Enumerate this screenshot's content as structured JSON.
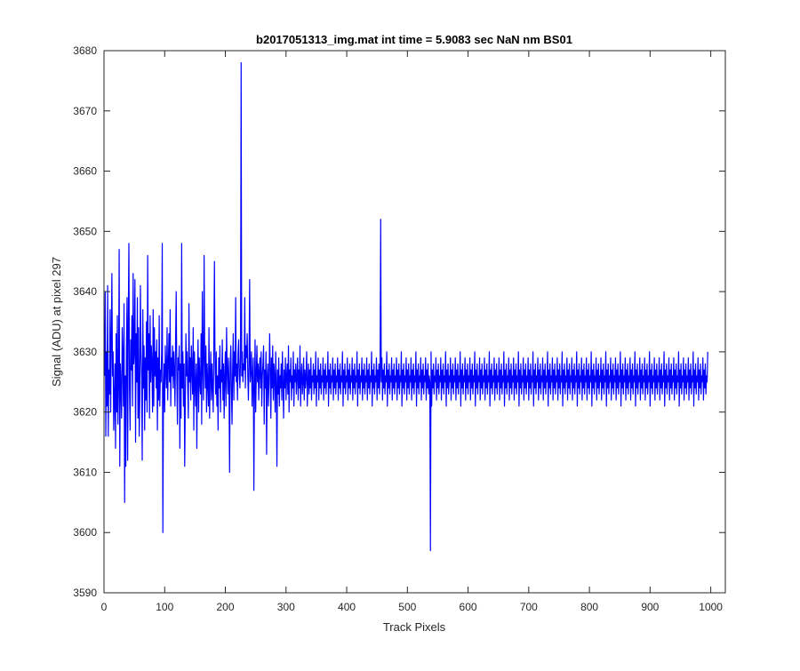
{
  "figure": {
    "background": "#ffffff",
    "axes_color": "#262626",
    "line_color": "#0000ff"
  },
  "chart_data": {
    "type": "line",
    "title": "b2017051313_img.mat int time = 5.9083 sec  NaN nm BS01",
    "xlabel": "Track Pixels",
    "ylabel": "Signal (ADU) at pixel 297",
    "xlim": [
      0,
      1024
    ],
    "ylim": [
      3590,
      3680
    ],
    "xticks": [
      0,
      100,
      200,
      300,
      400,
      500,
      600,
      700,
      800,
      900,
      1000
    ],
    "yticks": [
      3590,
      3600,
      3610,
      3620,
      3630,
      3640,
      3650,
      3660,
      3670,
      3680
    ],
    "grid": false,
    "legend": "none",
    "box": true,
    "series": [
      {
        "color": "#0000ff",
        "x_start": 1,
        "x_step": 1,
        "y": [
          3626,
          3640,
          3616,
          3630,
          3621,
          3641,
          3616,
          3627,
          3623,
          3637,
          3620,
          3632,
          3643,
          3626,
          3630,
          3617,
          3622,
          3628,
          3614,
          3633,
          3620,
          3636,
          3618,
          3625,
          3647,
          3611,
          3628,
          3624,
          3619,
          3634,
          3629,
          3621,
          3638,
          3605,
          3626,
          3611,
          3630,
          3639,
          3612,
          3635,
          3648,
          3624,
          3617,
          3632,
          3627,
          3636,
          3621,
          3643,
          3628,
          3630,
          3642,
          3615,
          3633,
          3625,
          3639,
          3619,
          3634,
          3616,
          3622,
          3641,
          3630,
          3626,
          3612,
          3637,
          3624,
          3631,
          3617,
          3629,
          3622,
          3635,
          3620,
          3646,
          3627,
          3633,
          3619,
          3636,
          3625,
          3631,
          3628,
          3620,
          3637,
          3621,
          3634,
          3626,
          3630,
          3624,
          3632,
          3617,
          3629,
          3622,
          3636,
          3621,
          3627,
          3625,
          3630,
          3648,
          3600,
          3623,
          3628,
          3620,
          3631,
          3627,
          3624,
          3634,
          3622,
          3628,
          3633,
          3625,
          3637,
          3621,
          3629,
          3626,
          3631,
          3624,
          3630,
          3627,
          3621,
          3632,
          3640,
          3626,
          3618,
          3629,
          3627,
          3631,
          3614,
          3628,
          3619,
          3648,
          3624,
          3630,
          3621,
          3628,
          3611,
          3622,
          3633,
          3626,
          3630,
          3624,
          3619,
          3638,
          3625,
          3629,
          3622,
          3631,
          3627,
          3623,
          3634,
          3617,
          3630,
          3625,
          3621,
          3628,
          3614,
          3626,
          3632,
          3620,
          3629,
          3625,
          3623,
          3633,
          3618,
          3640,
          3627,
          3622,
          3646,
          3629,
          3624,
          3631,
          3620,
          3628,
          3625,
          3621,
          3634,
          3619,
          3626,
          3630,
          3622,
          3628,
          3624,
          3620,
          3631,
          3645,
          3628,
          3623,
          3630,
          3621,
          3626,
          3617,
          3629,
          3624,
          3631,
          3620,
          3627,
          3625,
          3632,
          3622,
          3628,
          3619,
          3626,
          3630,
          3621,
          3634,
          3627,
          3623,
          3629,
          3625,
          3610,
          3628,
          3631,
          3624,
          3618,
          3627,
          3633,
          3622,
          3630,
          3626,
          3639,
          3625,
          3628,
          3622,
          3630,
          3632,
          3626,
          3624,
          3629,
          3678,
          3626,
          3630,
          3625,
          3628,
          3627,
          3639,
          3624,
          3631,
          3629,
          3633,
          3626,
          3622,
          3628,
          3642,
          3625,
          3627,
          3630,
          3621,
          3626,
          3629,
          3607,
          3624,
          3632,
          3620,
          3626,
          3631,
          3625,
          3628,
          3622,
          3627,
          3629,
          3624,
          3630,
          3621,
          3626,
          3628,
          3631,
          3618,
          3627,
          3624,
          3630,
          3613,
          3626,
          3628,
          3621,
          3625,
          3633,
          3627,
          3619,
          3629,
          3624,
          3631,
          3622,
          3628,
          3626,
          3620,
          3630,
          3625,
          3611,
          3627,
          3623,
          3629,
          3621,
          3626,
          3624,
          3628,
          3622,
          3630,
          3625,
          3619,
          3627,
          3624,
          3629,
          3622,
          3626,
          3628,
          3623,
          3631,
          3620,
          3627,
          3625,
          3629,
          3622,
          3626,
          3624,
          3630,
          3621,
          3627,
          3625,
          3628,
          3623,
          3626,
          3629,
          3622,
          3627,
          3624,
          3631,
          3621,
          3626,
          3628,
          3623,
          3625,
          3629,
          3622,
          3627,
          3624,
          3626,
          3630,
          3621,
          3625,
          3628,
          3623,
          3627,
          3624,
          3629,
          3622,
          3626,
          3625,
          3628,
          3623,
          3627,
          3624,
          3630,
          3621,
          3626,
          3625,
          3629,
          3622,
          3627,
          3624,
          3628,
          3623,
          3626,
          3625,
          3629,
          3622,
          3627,
          3624,
          3628,
          3623,
          3626,
          3625,
          3630,
          3621,
          3627,
          3624,
          3628,
          3623,
          3626,
          3625,
          3629,
          3622,
          3627,
          3624,
          3628,
          3623,
          3626,
          3625,
          3629,
          3622,
          3627,
          3624,
          3628,
          3623,
          3626,
          3625,
          3630,
          3621,
          3627,
          3624,
          3628,
          3623,
          3626,
          3625,
          3629,
          3622,
          3627,
          3624,
          3628,
          3623,
          3626,
          3625,
          3629,
          3622,
          3627,
          3624,
          3628,
          3623,
          3626,
          3625,
          3630,
          3621,
          3627,
          3624,
          3628,
          3623,
          3626,
          3625,
          3629,
          3622,
          3627,
          3624,
          3628,
          3623,
          3626,
          3625,
          3629,
          3622,
          3627,
          3624,
          3628,
          3623,
          3626,
          3625,
          3630,
          3621,
          3627,
          3624,
          3628,
          3623,
          3626,
          3625,
          3629,
          3622,
          3627,
          3624,
          3628,
          3623,
          3626,
          3652,
          3625,
          3629,
          3622,
          3627,
          3624,
          3628,
          3623,
          3626,
          3625,
          3630,
          3621,
          3627,
          3624,
          3628,
          3623,
          3626,
          3625,
          3629,
          3622,
          3627,
          3624,
          3628,
          3623,
          3626,
          3625,
          3629,
          3622,
          3627,
          3624,
          3628,
          3623,
          3626,
          3625,
          3630,
          3621,
          3627,
          3624,
          3628,
          3623,
          3626,
          3625,
          3629,
          3622,
          3627,
          3624,
          3628,
          3623,
          3626,
          3625,
          3629,
          3622,
          3627,
          3624,
          3628,
          3623,
          3626,
          3625,
          3630,
          3621,
          3627,
          3624,
          3628,
          3623,
          3626,
          3625,
          3629,
          3622,
          3627,
          3624,
          3628,
          3623,
          3626,
          3625,
          3629,
          3622,
          3627,
          3624,
          3628,
          3623,
          3626,
          3625,
          3597,
          3630,
          3621,
          3627,
          3624,
          3628,
          3623,
          3626,
          3625,
          3629,
          3622,
          3627,
          3624,
          3628,
          3623,
          3626,
          3625,
          3629,
          3622,
          3627,
          3624,
          3628,
          3623,
          3626,
          3625,
          3630,
          3621,
          3627,
          3624,
          3628,
          3623,
          3626,
          3625,
          3629,
          3622,
          3627,
          3624,
          3628,
          3623,
          3626,
          3625,
          3629,
          3622,
          3627,
          3624,
          3628,
          3623,
          3626,
          3625,
          3630,
          3621,
          3627,
          3624,
          3628,
          3623,
          3626,
          3625,
          3629,
          3622,
          3627,
          3624,
          3628,
          3623,
          3626,
          3625,
          3629,
          3622,
          3627,
          3624,
          3628,
          3623,
          3626,
          3625,
          3630,
          3621,
          3627,
          3624,
          3628,
          3623,
          3626,
          3625,
          3629,
          3622,
          3627,
          3624,
          3628,
          3623,
          3626,
          3625,
          3629,
          3622,
          3627,
          3624,
          3628,
          3623,
          3626,
          3625,
          3630,
          3621,
          3627,
          3624,
          3628,
          3623,
          3626,
          3625,
          3629,
          3622,
          3627,
          3624,
          3628,
          3623,
          3626,
          3625,
          3629,
          3622,
          3627,
          3624,
          3628,
          3623,
          3626,
          3625,
          3630,
          3621,
          3627,
          3624,
          3628,
          3623,
          3626,
          3625,
          3629,
          3622,
          3627,
          3624,
          3628,
          3623,
          3626,
          3625,
          3629,
          3622,
          3627,
          3624,
          3628,
          3623,
          3626,
          3625,
          3630,
          3621,
          3627,
          3624,
          3628,
          3623,
          3626,
          3625,
          3629,
          3622,
          3627,
          3624,
          3628,
          3623,
          3626,
          3625,
          3629,
          3622,
          3627,
          3624,
          3628,
          3623,
          3626,
          3625,
          3630,
          3621,
          3627,
          3624,
          3628,
          3623,
          3626,
          3625,
          3629,
          3622,
          3627,
          3624,
          3628,
          3623,
          3626,
          3625,
          3629,
          3622,
          3627,
          3624,
          3628,
          3623,
          3626,
          3625,
          3630,
          3621,
          3627,
          3624,
          3628,
          3623,
          3626,
          3625,
          3629,
          3622,
          3627,
          3624,
          3628,
          3623,
          3626,
          3625,
          3629,
          3622,
          3627,
          3624,
          3628,
          3623,
          3626,
          3625,
          3630,
          3621,
          3627,
          3624,
          3628,
          3623,
          3626,
          3625,
          3629,
          3622,
          3627,
          3624,
          3628,
          3623,
          3626,
          3625,
          3629,
          3622,
          3627,
          3624,
          3628,
          3623,
          3626,
          3625,
          3630,
          3621,
          3627,
          3624,
          3628,
          3623,
          3626,
          3625,
          3629,
          3622,
          3627,
          3624,
          3628,
          3623,
          3626,
          3625,
          3629,
          3622,
          3627,
          3624,
          3628,
          3623,
          3626,
          3625,
          3630,
          3621,
          3627,
          3624,
          3628,
          3623,
          3626,
          3625,
          3629,
          3622,
          3627,
          3624,
          3628,
          3623,
          3626,
          3625,
          3629,
          3622,
          3627,
          3624,
          3628,
          3623,
          3626,
          3625,
          3630,
          3621,
          3627,
          3624,
          3628,
          3623,
          3626,
          3625,
          3629,
          3622,
          3627,
          3624,
          3628,
          3623,
          3626,
          3625,
          3629,
          3622,
          3627,
          3624,
          3628,
          3623,
          3626,
          3625,
          3630,
          3621,
          3627,
          3624,
          3628,
          3623,
          3626,
          3625,
          3629,
          3622,
          3627,
          3624,
          3628,
          3623,
          3626,
          3625,
          3629,
          3622,
          3627,
          3624,
          3628,
          3623,
          3626,
          3625,
          3630,
          3621,
          3627,
          3624,
          3628,
          3623,
          3626,
          3625,
          3629,
          3622,
          3627,
          3624,
          3628,
          3623,
          3626,
          3625,
          3629,
          3622,
          3627,
          3624,
          3628,
          3623,
          3626,
          3625,
          3630,
          3621,
          3627,
          3624,
          3628,
          3623,
          3626,
          3625,
          3629,
          3622,
          3627,
          3624,
          3628,
          3623,
          3626,
          3625,
          3629,
          3622,
          3627,
          3624,
          3628,
          3623,
          3626,
          3625,
          3630,
          3621,
          3627,
          3624,
          3628,
          3623,
          3626,
          3625,
          3629,
          3622,
          3627,
          3624,
          3628,
          3623,
          3626,
          3625,
          3629,
          3622,
          3627,
          3624,
          3628,
          3623,
          3626,
          3625,
          3630,
          3621,
          3627,
          3624,
          3628,
          3623,
          3626,
          3625,
          3629,
          3622,
          3627,
          3624,
          3628,
          3623,
          3626,
          3625,
          3629,
          3622,
          3627,
          3624,
          3628,
          3623,
          3626,
          3625,
          3630,
          3621,
          3627,
          3624,
          3628,
          3623,
          3626,
          3625,
          3629,
          3622,
          3627,
          3624,
          3628,
          3623,
          3626,
          3625,
          3629,
          3622,
          3627,
          3624,
          3628,
          3623,
          3626,
          3625,
          3630
        ]
      }
    ],
    "noise_envelope": {
      "note_excluded": true
    }
  }
}
